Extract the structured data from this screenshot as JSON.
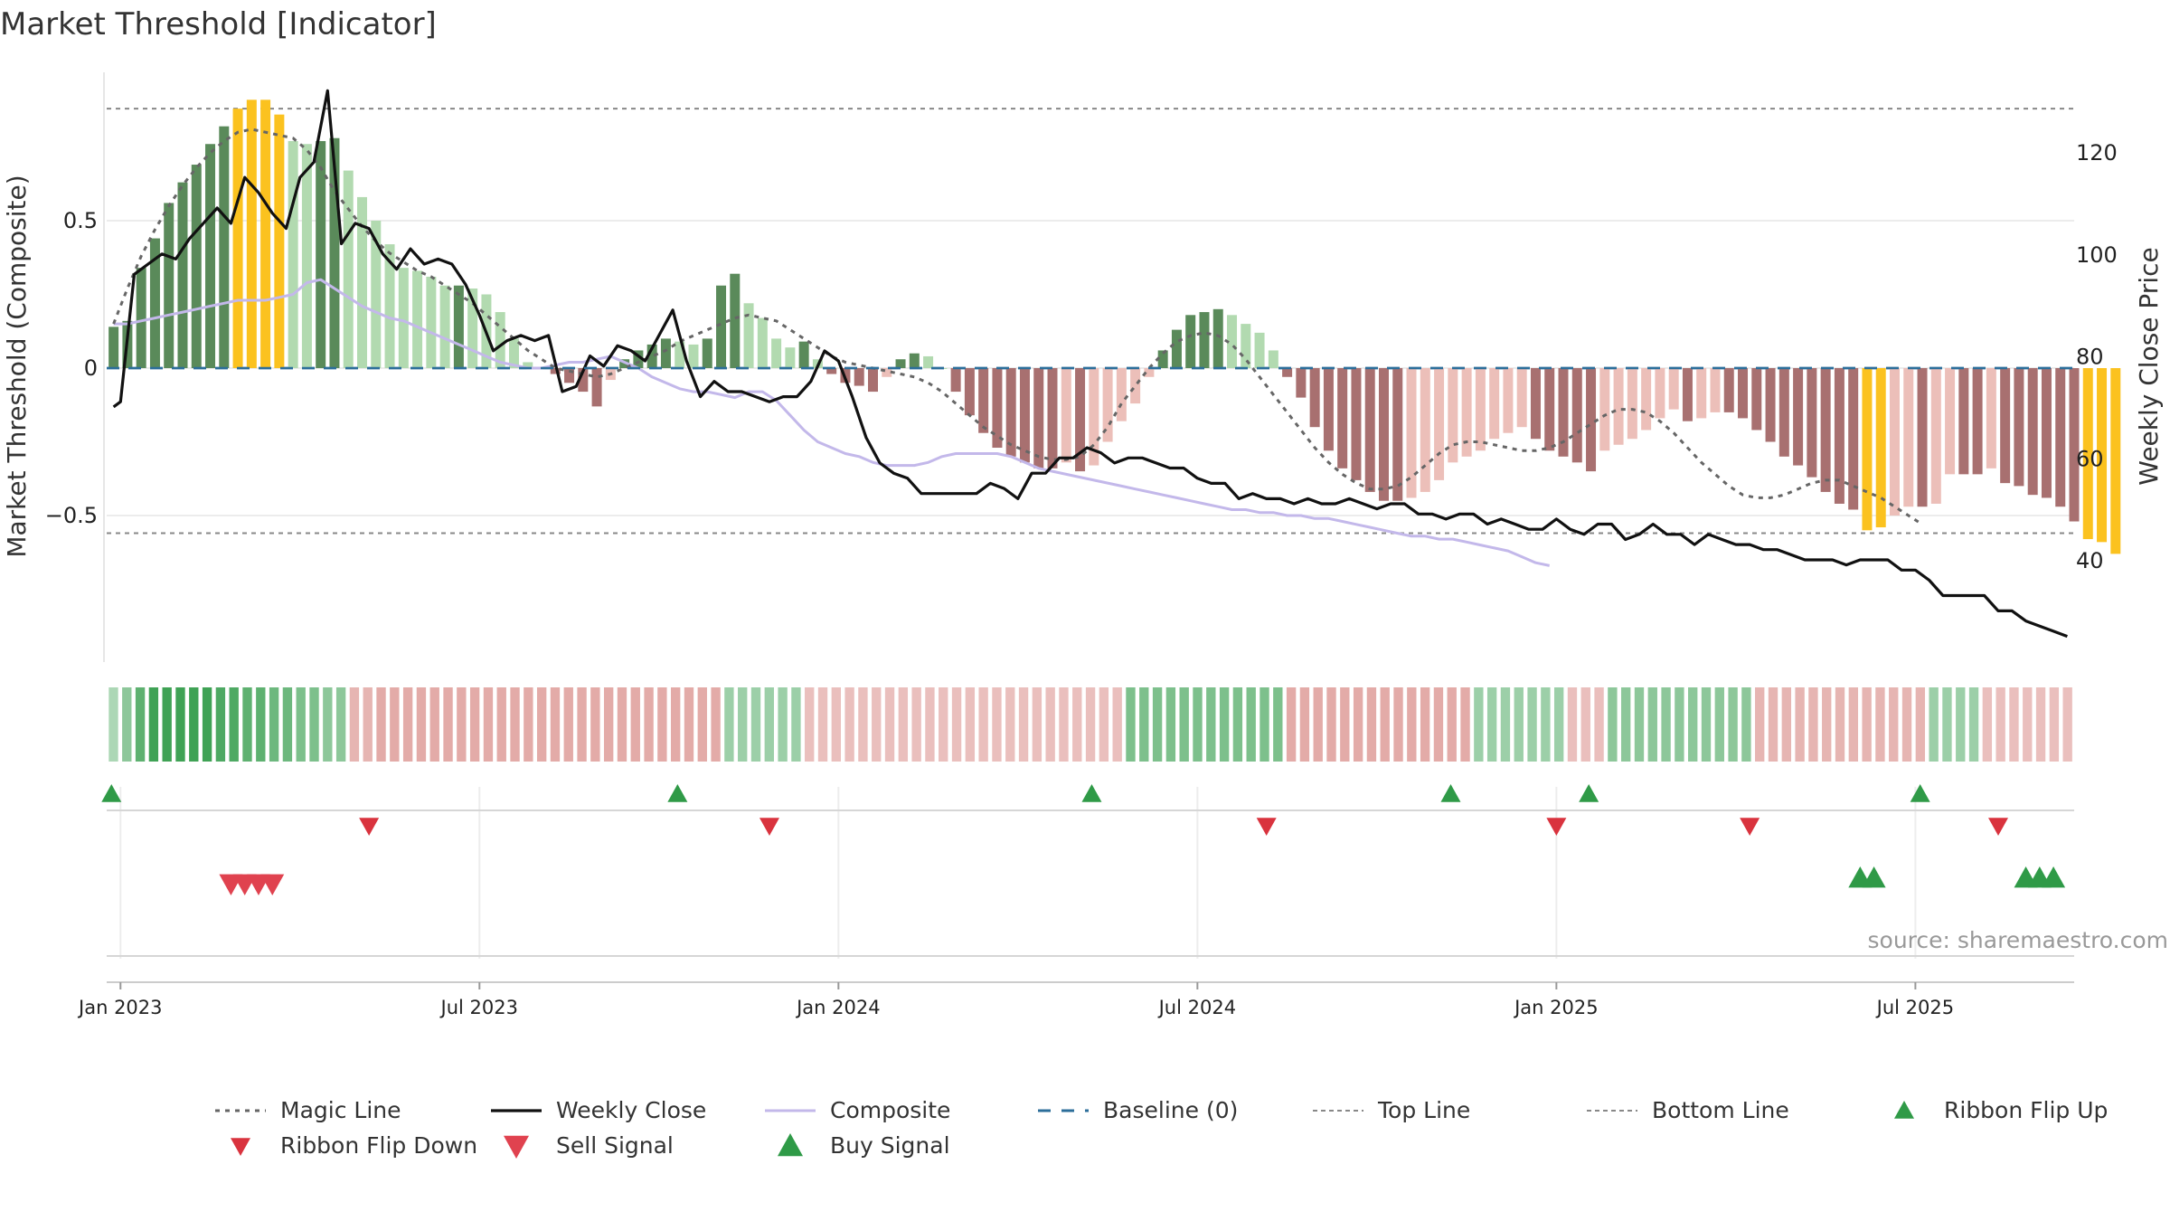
{
  "title": "Market Threshold [Indicator]",
  "source": "source: sharemaestro.com",
  "colors": {
    "strong_pos": "#5a8a5a",
    "weak_pos": "#b2dab0",
    "strong_neg": "#a87070",
    "weak_neg": "#ecbfb9",
    "extreme": "#fbc21f",
    "magic": "#666666",
    "close": "#111111",
    "composite": "#c3b8ea",
    "baseline": "#2c6e9a",
    "refline": "#888888",
    "buy": "#2f9a47",
    "sell": "#d9333e",
    "grid": "#ececec"
  },
  "legend": [
    {
      "key": "magic",
      "label": "Magic Line"
    },
    {
      "key": "close",
      "label": "Weekly Close"
    },
    {
      "key": "composite",
      "label": "Composite"
    },
    {
      "key": "baseline",
      "label": "Baseline (0)"
    },
    {
      "key": "top",
      "label": "Top Line"
    },
    {
      "key": "bottom",
      "label": "Bottom Line"
    },
    {
      "key": "flipup",
      "label": "Ribbon Flip Up"
    },
    {
      "key": "flipdown",
      "label": "Ribbon Flip Down"
    },
    {
      "key": "sell",
      "label": "Sell Signal"
    },
    {
      "key": "buy",
      "label": "Buy Signal"
    }
  ],
  "chart_data": {
    "type": "bar",
    "title": "Market Threshold [Indicator]",
    "ylabel_left": "Market Threshold (Composite)",
    "ylabel_right": "Weekly Close Price",
    "y_left_ticks": [
      "0.5",
      "0",
      "−0.5"
    ],
    "y_left_tick_values": [
      0.5,
      0,
      -0.5
    ],
    "y_right_ticks": [
      "120",
      "100",
      "80",
      "60",
      "40"
    ],
    "y_right_tick_values": [
      120,
      100,
      80,
      60,
      40
    ],
    "y_left_range": [
      -1.0,
      1.0
    ],
    "y_right_range": [
      20,
      135
    ],
    "top_line": 0.88,
    "bottom_line": -0.56,
    "x_ticks": [
      "Jan 2023",
      "Jul 2023",
      "Jan 2024",
      "Jul 2024",
      "Jan 2025",
      "Jul 2025"
    ],
    "x_tick_weeks": [
      1,
      27,
      53,
      79,
      105,
      131
    ],
    "start_date": "2022-12-19",
    "composite_bars": [
      0.14,
      0.16,
      0.34,
      0.44,
      0.56,
      0.63,
      0.69,
      0.76,
      0.82,
      0.88,
      0.91,
      0.91,
      0.86,
      0.77,
      0.76,
      0.77,
      0.78,
      0.67,
      0.58,
      0.5,
      0.42,
      0.34,
      0.33,
      0.31,
      0.28,
      0.28,
      0.27,
      0.25,
      0.19,
      0.1,
      0.02,
      0.0,
      -0.02,
      -0.05,
      -0.08,
      -0.13,
      -0.04,
      0.03,
      0.06,
      0.08,
      0.1,
      0.09,
      0.08,
      0.1,
      0.28,
      0.32,
      0.22,
      0.17,
      0.1,
      0.07,
      0.09,
      0.03,
      -0.02,
      -0.05,
      -0.06,
      -0.08,
      -0.03,
      0.03,
      0.05,
      0.04,
      0.0,
      -0.08,
      -0.16,
      -0.22,
      -0.27,
      -0.3,
      -0.32,
      -0.34,
      -0.34,
      -0.32,
      -0.35,
      -0.33,
      -0.25,
      -0.18,
      -0.12,
      -0.03,
      0.06,
      0.13,
      0.18,
      0.19,
      0.2,
      0.18,
      0.15,
      0.12,
      0.06,
      -0.03,
      -0.1,
      -0.2,
      -0.28,
      -0.34,
      -0.38,
      -0.42,
      -0.45,
      -0.45,
      -0.44,
      -0.42,
      -0.38,
      -0.32,
      -0.3,
      -0.28,
      -0.24,
      -0.22,
      -0.2,
      -0.24,
      -0.28,
      -0.3,
      -0.32,
      -0.35,
      -0.28,
      -0.26,
      -0.24,
      -0.21,
      -0.17,
      -0.14,
      -0.18,
      -0.17,
      -0.15,
      -0.15,
      -0.17,
      -0.21,
      -0.25,
      -0.3,
      -0.33,
      -0.37,
      -0.42,
      -0.46,
      -0.48,
      -0.55,
      -0.54,
      -0.5,
      -0.47,
      -0.47,
      -0.46,
      -0.36,
      -0.36,
      -0.36,
      -0.34,
      -0.39,
      -0.4,
      -0.43,
      -0.44,
      -0.47,
      -0.52,
      -0.58,
      -0.59,
      -0.63
    ],
    "magic_line": [
      0.15,
      0.27,
      0.38,
      0.47,
      0.55,
      0.62,
      0.68,
      0.73,
      0.77,
      0.8,
      0.81,
      0.8,
      0.79,
      0.78,
      0.74,
      0.68,
      0.6,
      0.54,
      0.48,
      0.43,
      0.39,
      0.36,
      0.33,
      0.31,
      0.28,
      0.25,
      0.22,
      0.18,
      0.14,
      0.1,
      0.06,
      0.03,
      0.0,
      -0.01,
      -0.02,
      -0.03,
      -0.02,
      0.0,
      0.02,
      0.04,
      0.06,
      0.09,
      0.11,
      0.13,
      0.15,
      0.17,
      0.18,
      0.17,
      0.16,
      0.13,
      0.1,
      0.07,
      0.04,
      0.02,
      0.01,
      0.0,
      -0.01,
      -0.02,
      -0.03,
      -0.05,
      -0.08,
      -0.12,
      -0.16,
      -0.2,
      -0.23,
      -0.26,
      -0.28,
      -0.3,
      -0.31,
      -0.31,
      -0.3,
      -0.26,
      -0.2,
      -0.12,
      -0.06,
      0.0,
      0.05,
      0.09,
      0.11,
      0.12,
      0.11,
      0.08,
      0.03,
      -0.03,
      -0.09,
      -0.15,
      -0.21,
      -0.27,
      -0.32,
      -0.36,
      -0.39,
      -0.41,
      -0.41,
      -0.4,
      -0.37,
      -0.33,
      -0.29,
      -0.26,
      -0.25,
      -0.25,
      -0.26,
      -0.27,
      -0.28,
      -0.28,
      -0.27,
      -0.25,
      -0.22,
      -0.19,
      -0.16,
      -0.14,
      -0.14,
      -0.15,
      -0.18,
      -0.22,
      -0.27,
      -0.32,
      -0.36,
      -0.4,
      -0.43,
      -0.44,
      -0.44,
      -0.43,
      -0.41,
      -0.39,
      -0.38,
      -0.38,
      -0.4,
      -0.42,
      -0.44,
      -0.47,
      -0.5,
      -0.53
    ],
    "composite_line": [
      0.15,
      0.15,
      0.16,
      0.17,
      0.18,
      0.19,
      0.2,
      0.21,
      0.22,
      0.23,
      0.23,
      0.23,
      0.24,
      0.25,
      0.29,
      0.3,
      0.27,
      0.24,
      0.21,
      0.19,
      0.17,
      0.16,
      0.14,
      0.12,
      0.1,
      0.08,
      0.06,
      0.04,
      0.02,
      0.01,
      0.0,
      0.0,
      0.01,
      0.02,
      0.02,
      0.03,
      0.04,
      0.02,
      0.0,
      -0.03,
      -0.05,
      -0.07,
      -0.08,
      -0.08,
      -0.09,
      -0.1,
      -0.08,
      -0.08,
      -0.11,
      -0.16,
      -0.21,
      -0.25,
      -0.27,
      -0.29,
      -0.3,
      -0.32,
      -0.33,
      -0.33,
      -0.33,
      -0.32,
      -0.3,
      -0.29,
      -0.29,
      -0.29,
      -0.29,
      -0.3,
      -0.32,
      -0.34,
      -0.35,
      -0.36,
      -0.37,
      -0.38,
      -0.39,
      -0.4,
      -0.41,
      -0.42,
      -0.43,
      -0.44,
      -0.45,
      -0.46,
      -0.47,
      -0.48,
      -0.48,
      -0.49,
      -0.49,
      -0.5,
      -0.5,
      -0.51,
      -0.51,
      -0.52,
      -0.53,
      -0.54,
      -0.55,
      -0.56,
      -0.57,
      -0.57,
      -0.58,
      -0.58,
      -0.59,
      -0.6,
      -0.61,
      -0.62,
      -0.64,
      -0.66,
      -0.67
    ],
    "weekly_close": [
      70,
      71,
      96,
      100,
      103,
      102,
      106,
      109,
      112,
      109,
      116,
      113,
      109,
      106,
      118,
      124,
      131,
      94,
      102,
      101,
      96,
      93,
      97,
      95,
      95,
      94,
      90,
      82,
      79,
      80,
      82,
      81,
      83,
      72,
      73,
      80,
      78,
      81,
      80,
      84,
      84,
      88,
      93,
      74,
      73,
      77,
      71,
      75,
      75,
      74,
      73,
      75,
      74,
      79,
      84,
      86,
      62,
      55,
      51,
      51,
      48,
      49,
      49,
      48,
      50,
      49,
      46,
      54,
      55,
      59,
      60,
      58,
      61,
      58,
      58,
      56,
      55,
      54,
      52,
      52,
      48,
      49,
      48,
      47,
      46,
      46,
      45,
      44,
      43,
      43,
      42,
      41,
      41,
      40,
      40,
      39,
      39,
      38,
      38,
      39,
      38,
      34,
      33,
      33,
      31,
      30,
      30,
      31,
      31,
      30,
      30,
      26,
      27,
      26,
      26,
      26,
      26,
      25,
      20,
      19,
      18,
      17,
      16,
      16,
      15,
      14,
      13,
      13,
      12,
      12,
      13,
      12
    ],
    "close_nodes": [
      [
        0.5,
        70
      ],
      [
        1,
        71
      ],
      [
        2,
        96
      ],
      [
        3,
        98
      ],
      [
        4,
        100
      ],
      [
        5,
        99
      ],
      [
        6,
        103
      ],
      [
        7,
        106
      ],
      [
        8,
        109
      ],
      [
        9,
        106
      ],
      [
        10,
        115
      ],
      [
        11,
        112
      ],
      [
        12,
        108
      ],
      [
        13,
        105
      ],
      [
        14,
        115
      ],
      [
        15,
        118
      ],
      [
        16,
        132
      ],
      [
        17,
        102
      ],
      [
        18,
        106
      ],
      [
        19,
        105
      ],
      [
        20,
        100
      ],
      [
        21,
        97
      ],
      [
        22,
        101
      ],
      [
        23,
        98
      ],
      [
        24,
        99
      ],
      [
        25,
        98
      ],
      [
        26,
        94
      ],
      [
        27,
        88
      ],
      [
        28,
        81
      ],
      [
        29,
        83
      ],
      [
        30,
        84
      ],
      [
        31,
        83
      ],
      [
        32,
        84
      ],
      [
        33,
        73
      ],
      [
        34,
        74
      ],
      [
        35,
        80
      ],
      [
        36,
        78
      ],
      [
        37,
        82
      ],
      [
        38,
        81
      ],
      [
        39,
        79
      ],
      [
        40,
        84
      ],
      [
        41,
        89
      ],
      [
        42,
        79
      ],
      [
        43,
        72
      ],
      [
        44,
        75
      ],
      [
        45,
        73
      ],
      [
        46,
        73
      ],
      [
        47,
        72
      ],
      [
        48,
        71
      ],
      [
        49,
        72
      ],
      [
        50,
        72
      ],
      [
        51,
        75
      ],
      [
        52,
        81
      ],
      [
        53,
        79
      ],
      [
        54,
        72
      ],
      [
        55,
        64
      ],
      [
        56,
        59
      ],
      [
        57,
        57
      ],
      [
        58,
        56
      ],
      [
        59,
        53
      ],
      [
        60,
        53
      ],
      [
        61,
        53
      ],
      [
        62,
        53
      ],
      [
        63,
        53
      ],
      [
        64,
        55
      ],
      [
        65,
        54
      ],
      [
        66,
        52
      ],
      [
        67,
        57
      ],
      [
        68,
        57
      ],
      [
        69,
        60
      ],
      [
        70,
        60
      ],
      [
        71,
        62
      ],
      [
        72,
        61
      ],
      [
        73,
        59
      ],
      [
        74,
        60
      ],
      [
        75,
        60
      ],
      [
        76,
        59
      ],
      [
        77,
        58
      ],
      [
        78,
        58
      ],
      [
        79,
        56
      ],
      [
        80,
        55
      ],
      [
        81,
        55
      ],
      [
        82,
        52
      ],
      [
        83,
        53
      ],
      [
        84,
        52
      ],
      [
        85,
        52
      ],
      [
        86,
        51
      ],
      [
        87,
        52
      ],
      [
        88,
        51
      ],
      [
        89,
        51
      ],
      [
        90,
        52
      ],
      [
        91,
        51
      ],
      [
        92,
        50
      ],
      [
        93,
        51
      ],
      [
        94,
        51
      ],
      [
        95,
        49
      ],
      [
        96,
        49
      ],
      [
        97,
        48
      ],
      [
        98,
        49
      ],
      [
        99,
        49
      ],
      [
        100,
        47
      ],
      [
        101,
        48
      ],
      [
        102,
        47
      ],
      [
        103,
        46
      ],
      [
        104,
        46
      ],
      [
        105,
        48
      ],
      [
        106,
        46
      ],
      [
        107,
        45
      ],
      [
        108,
        47
      ],
      [
        109,
        47
      ],
      [
        110,
        44
      ],
      [
        111,
        45
      ],
      [
        112,
        47
      ],
      [
        113,
        45
      ],
      [
        114,
        45
      ],
      [
        115,
        43
      ],
      [
        116,
        45
      ],
      [
        117,
        44
      ],
      [
        118,
        43
      ],
      [
        119,
        43
      ],
      [
        120,
        42
      ],
      [
        121,
        42
      ],
      [
        122,
        41
      ],
      [
        123,
        40
      ],
      [
        124,
        40
      ],
      [
        125,
        40
      ],
      [
        126,
        39
      ],
      [
        127,
        40
      ],
      [
        128,
        40
      ],
      [
        129,
        40
      ],
      [
        130,
        38
      ],
      [
        131,
        38
      ],
      [
        132,
        36
      ],
      [
        133,
        33
      ],
      [
        134,
        33
      ],
      [
        135,
        33
      ],
      [
        136,
        33
      ],
      [
        137,
        30
      ],
      [
        138,
        30
      ],
      [
        139,
        28
      ],
      [
        140,
        27
      ],
      [
        141,
        26
      ],
      [
        142,
        25
      ]
    ],
    "ribbon": [
      0.2,
      0.4,
      0.7,
      0.9,
      0.9,
      0.9,
      0.9,
      0.9,
      0.8,
      0.8,
      0.7,
      0.7,
      0.6,
      0.6,
      0.5,
      0.5,
      0.4,
      0.4,
      -0.4,
      -0.4,
      -0.5,
      -0.5,
      -0.5,
      -0.5,
      -0.5,
      -0.5,
      -0.5,
      -0.5,
      -0.5,
      -0.5,
      -0.5,
      -0.5,
      -0.5,
      -0.5,
      -0.5,
      -0.5,
      -0.5,
      -0.5,
      -0.5,
      -0.5,
      -0.5,
      -0.5,
      -0.5,
      -0.5,
      -0.5,
      -0.5,
      0.3,
      0.3,
      0.3,
      0.3,
      0.3,
      0.3,
      -0.3,
      -0.3,
      -0.3,
      -0.3,
      -0.3,
      -0.3,
      -0.3,
      -0.3,
      -0.3,
      -0.3,
      -0.3,
      -0.3,
      -0.3,
      -0.3,
      -0.3,
      -0.3,
      -0.3,
      -0.3,
      -0.3,
      -0.3,
      -0.3,
      -0.3,
      -0.3,
      -0.3,
      0.5,
      0.5,
      0.5,
      0.5,
      0.5,
      0.5,
      0.5,
      0.5,
      0.5,
      0.5,
      0.5,
      0.5,
      -0.5,
      -0.5,
      -0.5,
      -0.5,
      -0.5,
      -0.5,
      -0.5,
      -0.5,
      -0.5,
      -0.5,
      -0.5,
      -0.5,
      -0.5,
      -0.5,
      0.3,
      0.3,
      0.3,
      0.3,
      0.3,
      0.3,
      0.3,
      -0.3,
      -0.3,
      -0.3,
      0.4,
      0.4,
      0.4,
      0.4,
      0.4,
      0.4,
      0.4,
      0.4,
      0.4,
      0.4,
      0.4,
      -0.4,
      -0.4,
      -0.4,
      -0.4,
      -0.4,
      -0.4,
      -0.4,
      -0.4,
      -0.4,
      -0.4,
      -0.4,
      -0.4,
      -0.4,
      0.3,
      0.3,
      0.3,
      0.3,
      -0.3,
      -0.3,
      -0.3,
      -0.3,
      -0.3,
      -0.3,
      -0.3
    ],
    "flip_up_weeks": [
      1,
      42,
      72,
      98,
      108,
      132
    ],
    "flip_down_weeks": [
      19,
      48,
      84,
      105,
      119,
      137
    ],
    "sell_signal_weeks": [
      9,
      10,
      11,
      12
    ],
    "buy_signal_weeks": [
      127,
      128,
      139,
      140,
      141
    ]
  }
}
